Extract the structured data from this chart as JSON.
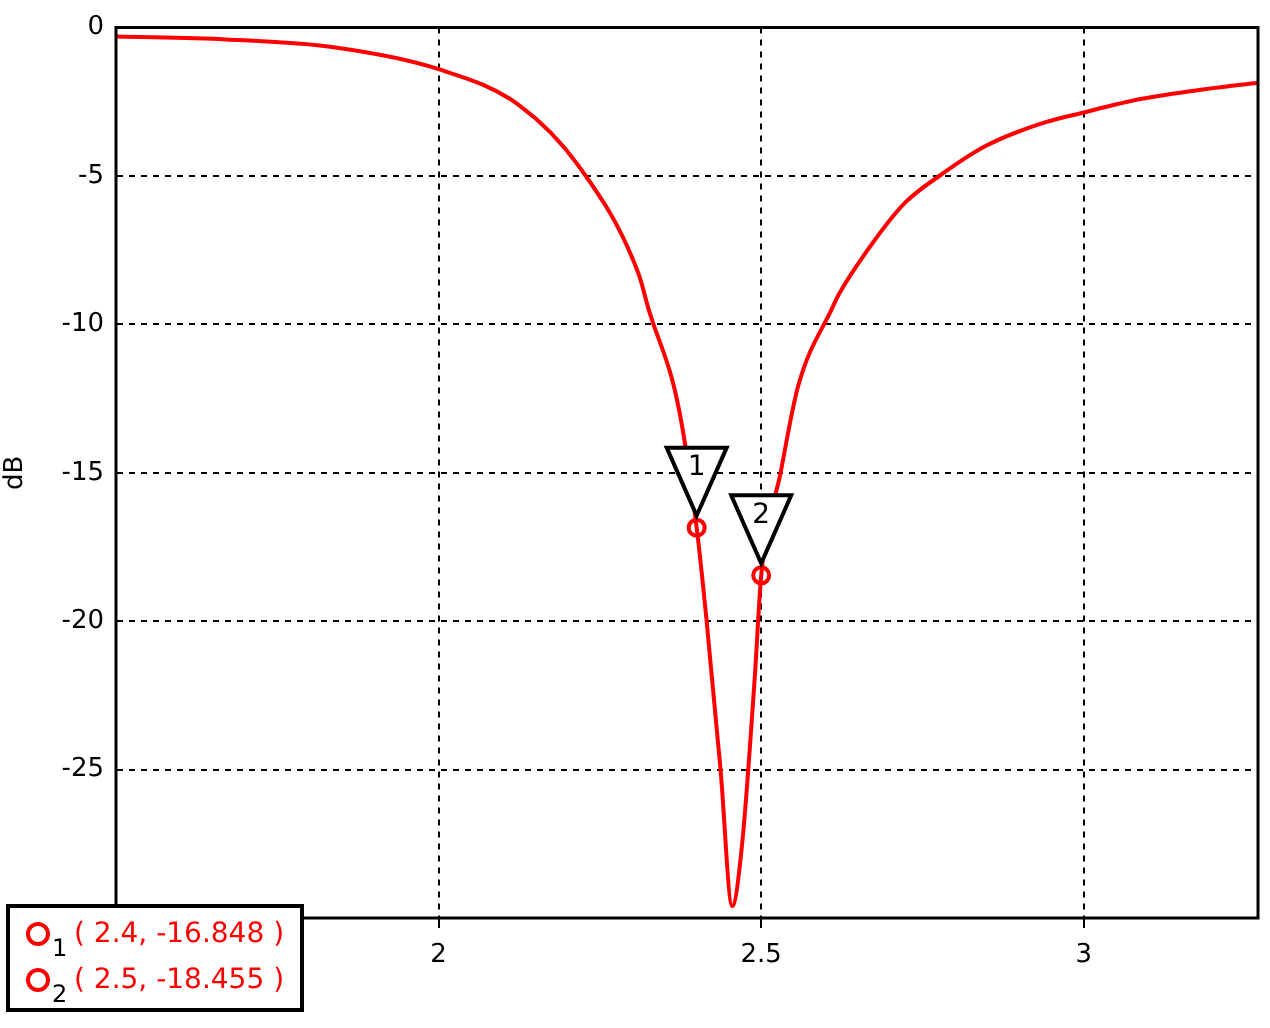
{
  "chart_data": {
    "type": "line",
    "ylabel": "dB",
    "xlim": [
      1.5,
      3.27
    ],
    "ylim": [
      -30,
      0
    ],
    "xticks": [
      2,
      2.5,
      3
    ],
    "yticks": [
      -25,
      -20,
      -15,
      -10,
      -5,
      0
    ],
    "grid": true,
    "legend": false,
    "series": [
      {
        "color": "#ff0000",
        "line_style": "solid",
        "marker": "none",
        "x": [
          1.5,
          1.67,
          1.84,
          2.0,
          2.124,
          2.217,
          2.31,
          2.325,
          2.372,
          2.4,
          2.415,
          2.437,
          2.455,
          2.47,
          2.49,
          2.5,
          2.53,
          2.557,
          2.61,
          2.62,
          2.673,
          2.723,
          2.776,
          2.847,
          2.93,
          3.0,
          3.09,
          3.19,
          3.27
        ],
        "values": [
          -0.3,
          -0.4,
          -0.67,
          -1.4,
          -2.6,
          -4.66,
          -8.3,
          -9.45,
          -12.8,
          -16.848,
          -19.9,
          -25,
          -29.6,
          -27.6,
          -21.9,
          -18.455,
          -15,
          -12.1,
          -9.45,
          -9.0,
          -7.25,
          -5.9,
          -5.0,
          -4.0,
          -3.26,
          -2.86,
          -2.4,
          -2.07,
          -1.86
        ]
      },
      {
        "type": "scatter",
        "color": "#ff0000",
        "marker": "circle",
        "x": [
          2.4,
          2.5
        ],
        "values": [
          -16.848,
          -18.455
        ]
      }
    ],
    "annotations": [
      {
        "text": "1",
        "x": 2.4,
        "y": -16.848
      },
      {
        "text": "2",
        "x": 2.5,
        "y": -18.455
      },
      "( 2.4, -16.848 )",
      "( 2.5, -18.455 )"
    ]
  }
}
